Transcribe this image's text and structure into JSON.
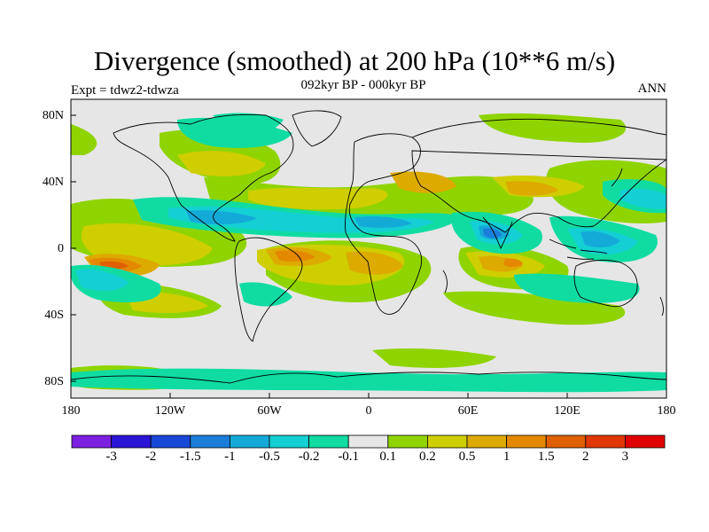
{
  "title": "Divergence (smoothed) at 200 hPa (10**6 m/s)",
  "subtitle": "092kyr BP - 000kyr BP",
  "experiment": "Expt = tdwz2-tdwza",
  "season": "ANN",
  "lat_labels": [
    "80N",
    "40N",
    "0",
    "40S",
    "80S"
  ],
  "lon_labels": [
    "180",
    "120W",
    "60W",
    "0",
    "60E",
    "120E",
    "180"
  ],
  "colors": {
    "background": "#e6e6e6",
    "neg": [
      "#7b1fe0",
      "#2a14d6",
      "#1848d8",
      "#1a7ed8",
      "#14aad8",
      "#14cfd4",
      "#10dca2"
    ],
    "pos": [
      "#8fd400",
      "#cfce00",
      "#ddaa00",
      "#e38800",
      "#e06000",
      "#e03800",
      "#e00000"
    ]
  },
  "colorbar": {
    "labels": [
      "-3",
      "-2",
      "-1.5",
      "-1",
      "-0.5",
      "-0.2",
      "-0.1",
      "0.1",
      "0.2",
      "0.5",
      "1",
      "1.5",
      "2",
      "3"
    ],
    "colors": [
      "#7b1fe0",
      "#2a14d6",
      "#1848d8",
      "#1a7ed8",
      "#14aad8",
      "#14cfd4",
      "#10dca2",
      "#e6e6e6",
      "#8fd400",
      "#cfce00",
      "#ddaa00",
      "#e38800",
      "#e06000",
      "#e03800",
      "#e00000"
    ]
  }
}
